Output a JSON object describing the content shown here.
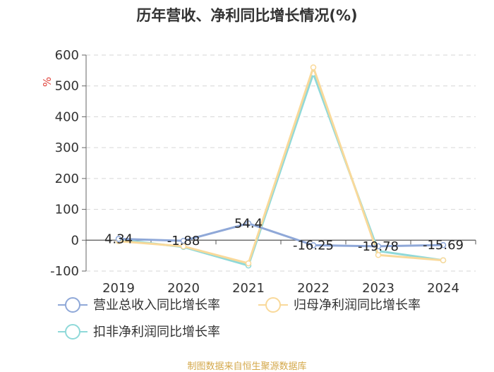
{
  "chart_data": {
    "type": "line",
    "title": "历年营收、净利同比增长情况(%)",
    "ylabel": "%",
    "categories": [
      "2019",
      "2020",
      "2021",
      "2022",
      "2023",
      "2024"
    ],
    "ylim": [
      -100,
      600
    ],
    "yticks": [
      -100,
      0,
      100,
      200,
      300,
      400,
      500,
      600
    ],
    "grid": true,
    "legend_position": "bottom",
    "series": [
      {
        "name": "营业总收入同比增长率",
        "color": "#8fa8d8",
        "values": [
          4.34,
          -1.88,
          54.4,
          -16.25,
          -19.78,
          -15.69
        ],
        "labels": [
          "4.34",
          "-1.88",
          "54.4",
          "-16.25",
          "-19.78",
          "-15.69"
        ]
      },
      {
        "name": "归母净利润同比增长率",
        "color": "#f9d99a",
        "values": [
          -3,
          -20,
          -75,
          560,
          -48,
          -65
        ]
      },
      {
        "name": "扣非净利润同比增长率",
        "color": "#8fd9d9",
        "values": [
          2,
          -22,
          -82,
          540,
          -35,
          -65
        ]
      }
    ]
  },
  "source": {
    "text": "制图数据来自恒生聚源数据库",
    "color": "#d4a84a"
  },
  "unit_color": "#e0413a"
}
